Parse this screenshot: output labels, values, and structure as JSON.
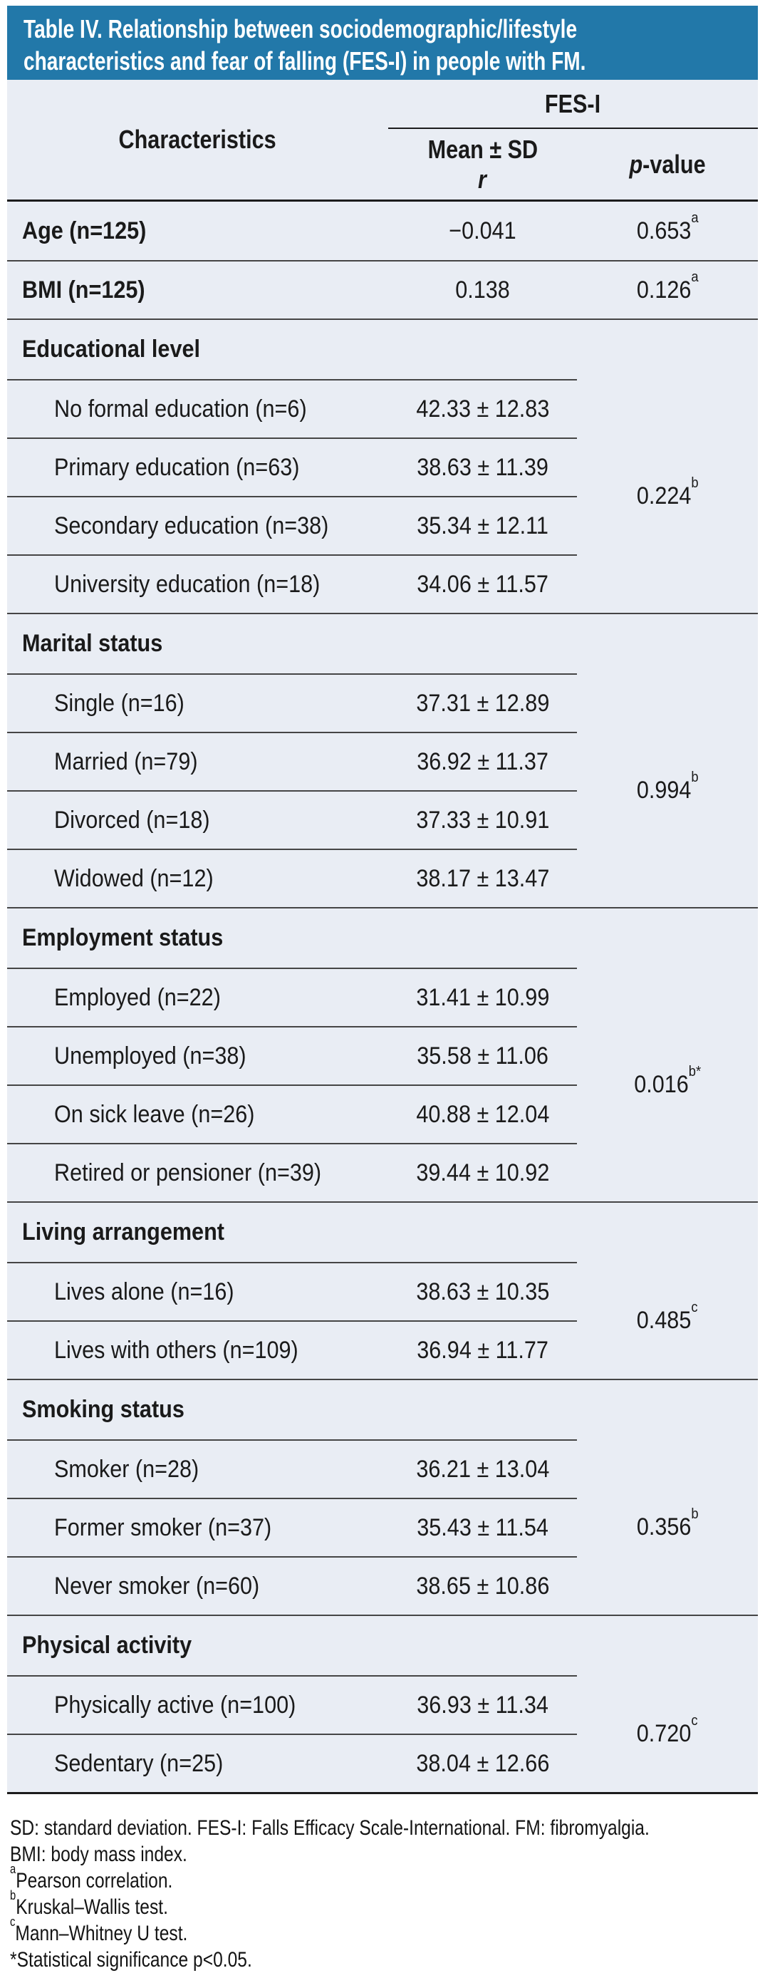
{
  "colors": {
    "header_bg": "#2278a9",
    "body_bg": "#e9edf4",
    "line": "#454545",
    "strong_line": "#1c1c1c",
    "text": "#1a1a1a",
    "title_text": "#ffffff"
  },
  "title_lines": [
    "Table IV. Relationship between sociodemographic/lifestyle",
    "characteristics and fear of falling (FES-I) in people with FM."
  ],
  "columns": {
    "characteristics": "Characteristics",
    "group_header": "FES-I",
    "stat_line1": "Mean ± SD",
    "stat_line2": "r",
    "p_italic": "p",
    "p_rest": "-value"
  },
  "rows": [
    {
      "type": "simple",
      "label": "Age (n=125)",
      "value": "−0.041",
      "p": "0.653",
      "p_sup": "a"
    },
    {
      "type": "simple",
      "label": "BMI (n=125)",
      "value": "0.138",
      "p": "0.126",
      "p_sup": "a"
    },
    {
      "type": "group",
      "header": "Educational level",
      "p": "0.224",
      "p_sup": "b",
      "items": [
        {
          "label": "No formal education (n=6)",
          "value": "42.33 ± 12.83"
        },
        {
          "label": "Primary education (n=63)",
          "value": "38.63 ± 11.39"
        },
        {
          "label": "Secondary education (n=38)",
          "value": "35.34 ± 12.11"
        },
        {
          "label": "University education (n=18)",
          "value": "34.06 ± 11.57"
        }
      ]
    },
    {
      "type": "group",
      "header": "Marital status",
      "p": "0.994",
      "p_sup": "b",
      "items": [
        {
          "label": "Single (n=16)",
          "value": "37.31 ± 12.89"
        },
        {
          "label": "Married (n=79)",
          "value": "36.92 ± 11.37"
        },
        {
          "label": "Divorced (n=18)",
          "value": "37.33 ± 10.91"
        },
        {
          "label": "Widowed (n=12)",
          "value": "38.17 ± 13.47"
        }
      ]
    },
    {
      "type": "group",
      "header": "Employment status",
      "p": "0.016",
      "p_sup": "b*",
      "items": [
        {
          "label": "Employed (n=22)",
          "value": "31.41 ± 10.99"
        },
        {
          "label": "Unemployed (n=38)",
          "value": "35.58 ± 11.06"
        },
        {
          "label": "On sick leave (n=26)",
          "value": "40.88 ± 12.04"
        },
        {
          "label": "Retired or pensioner (n=39)",
          "value": "39.44 ± 10.92"
        }
      ]
    },
    {
      "type": "group",
      "header": "Living arrangement",
      "p": "0.485",
      "p_sup": "c",
      "items": [
        {
          "label": "Lives alone (n=16)",
          "value": "38.63 ± 10.35"
        },
        {
          "label": "Lives with others (n=109)",
          "value": "36.94 ± 11.77"
        }
      ]
    },
    {
      "type": "group",
      "header": "Smoking status",
      "p": "0.356",
      "p_sup": "b",
      "items": [
        {
          "label": "Smoker (n=28)",
          "value": "36.21 ± 13.04"
        },
        {
          "label": "Former smoker (n=37)",
          "value": "35.43 ± 11.54"
        },
        {
          "label": "Never smoker (n=60)",
          "value": "38.65 ± 10.86"
        }
      ]
    },
    {
      "type": "group",
      "header": "Physical activity",
      "p": "0.720",
      "p_sup": "c",
      "items": [
        {
          "label": "Physically active (n=100)",
          "value": "36.93 ± 11.34"
        },
        {
          "label": "Sedentary (n=25)",
          "value": "38.04 ± 12.66"
        }
      ]
    }
  ],
  "footnotes": [
    {
      "sup": "",
      "text": "SD: standard deviation. FES-I: Falls Efficacy Scale-International. FM: fibromyalgia."
    },
    {
      "sup": "",
      "text": "BMI: body mass index."
    },
    {
      "sup": "a",
      "text": "Pearson correlation."
    },
    {
      "sup": "b",
      "text": "Kruskal–Wallis test."
    },
    {
      "sup": "c",
      "text": "Mann–Whitney U test."
    },
    {
      "sup": "",
      "text": "*Statistical significance p<0.05."
    }
  ]
}
